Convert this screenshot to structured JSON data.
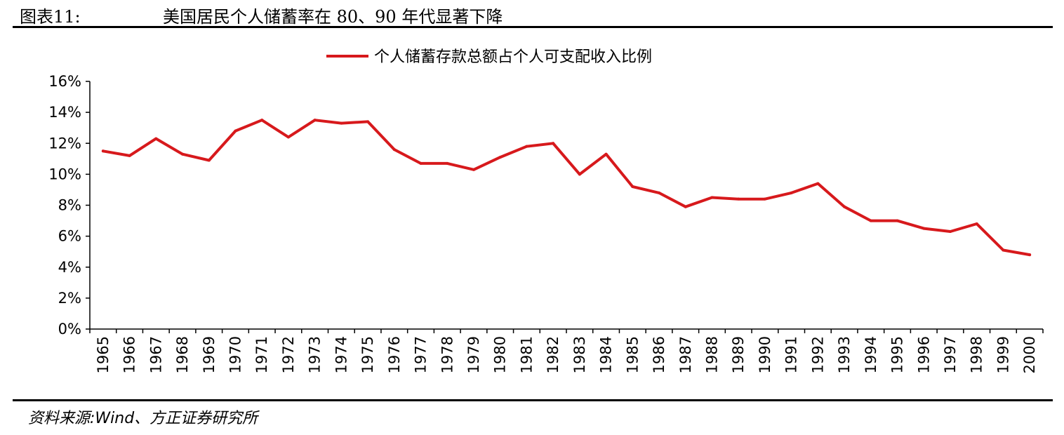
{
  "header": {
    "figure_label": "图表11:",
    "figure_title": "美国居民个人储蓄率在 80、90 年代显著下降"
  },
  "footer": {
    "source": "资料来源:Wind、方正证券研究所"
  },
  "colors": {
    "series": "#d7191c",
    "axis": "#000000"
  },
  "chart_data": {
    "type": "line",
    "title": "",
    "xlabel": "",
    "ylabel": "",
    "legend_position": "top-center",
    "grid": false,
    "ylim": [
      0,
      16
    ],
    "y_ticks": [
      0,
      2,
      4,
      6,
      8,
      10,
      12,
      14,
      16
    ],
    "y_tick_labels": [
      "0%",
      "2%",
      "4%",
      "6%",
      "8%",
      "10%",
      "12%",
      "14%",
      "16%"
    ],
    "categories": [
      "1965",
      "1966",
      "1967",
      "1968",
      "1969",
      "1970",
      "1971",
      "1972",
      "1973",
      "1974",
      "1975",
      "1976",
      "1977",
      "1978",
      "1979",
      "1980",
      "1981",
      "1982",
      "1983",
      "1984",
      "1985",
      "1986",
      "1987",
      "1988",
      "1989",
      "1990",
      "1991",
      "1992",
      "1993",
      "1994",
      "1995",
      "1996",
      "1997",
      "1998",
      "1999",
      "2000"
    ],
    "series": [
      {
        "name": "个人储蓄存款总额占个人可支配收入比例",
        "values": [
          11.5,
          11.2,
          12.3,
          11.3,
          10.9,
          12.8,
          13.5,
          12.4,
          13.5,
          13.3,
          13.4,
          11.6,
          10.7,
          10.7,
          10.3,
          11.1,
          11.8,
          12.0,
          10.0,
          11.3,
          9.2,
          8.8,
          7.9,
          8.5,
          8.4,
          8.4,
          8.8,
          9.4,
          7.9,
          7.0,
          7.0,
          6.5,
          6.3,
          6.8,
          5.1,
          4.8
        ]
      }
    ]
  }
}
